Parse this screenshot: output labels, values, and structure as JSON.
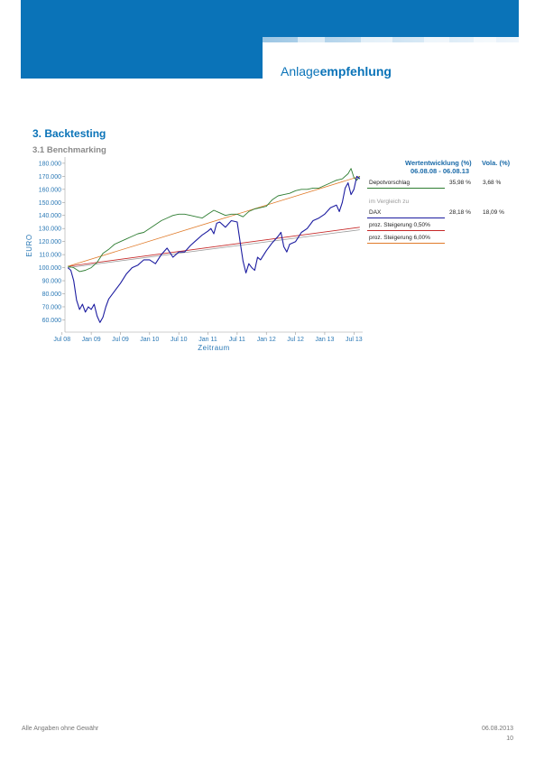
{
  "header": {
    "title_light": "Anlage",
    "title_bold": "empfehlung"
  },
  "section": {
    "title": "3. Backtesting",
    "subtitle": "3.1 Benchmarking"
  },
  "legend": {
    "col1_header": "Wertentwicklung (%)",
    "col2_header": "Vola. (%)",
    "period": "06.08.08 - 06.08.13",
    "comparison_label": "im Vergleich zu",
    "rows": [
      {
        "name": "Depotvorschlag",
        "performance": "35,98 %",
        "volatility": "3,68 %",
        "color": "#2e7d32"
      },
      {
        "name": "DAX",
        "performance": "28,18 %",
        "volatility": "18,09 %",
        "color": "#1c1ca0"
      },
      {
        "name": "proz. Steigerung 0,50%",
        "performance": "",
        "volatility": "",
        "color": "#c62828"
      },
      {
        "name": "proz. Steigerung 6,00%",
        "performance": "",
        "volatility": "",
        "color": "#e07b2a"
      }
    ]
  },
  "chart_data": {
    "type": "line",
    "ylabel": "EURO",
    "xlabel": "Zeitraum",
    "ylim": [
      52000,
      182000
    ],
    "yticks": [
      "180.000",
      "170.000",
      "160.000",
      "150.000",
      "140.000",
      "130.000",
      "120.000",
      "110.000",
      "100.000",
      "90.000",
      "80.000",
      "70.000",
      "60.000"
    ],
    "ytick_values": [
      180000,
      170000,
      160000,
      150000,
      140000,
      130000,
      120000,
      110000,
      100000,
      90000,
      80000,
      70000,
      60000
    ],
    "xticks": [
      "Jul 08",
      "Jan 09",
      "Jul 09",
      "Jan 10",
      "Jul 10",
      "Jan 11",
      "Jul 11",
      "Jan 12",
      "Jul 12",
      "Jan 13",
      "Jul 13"
    ],
    "xtick_values": [
      2008.5,
      2009.0,
      2009.5,
      2010.0,
      2010.5,
      2011.0,
      2011.5,
      2012.0,
      2012.5,
      2013.0,
      2013.5
    ],
    "xlim": [
      2008.55,
      2013.65
    ],
    "series": [
      {
        "name": "Depotvorschlag",
        "color": "#2e7d32",
        "x": [
          2008.6,
          2008.7,
          2008.8,
          2008.9,
          2009.0,
          2009.1,
          2009.2,
          2009.3,
          2009.4,
          2009.5,
          2009.6,
          2009.7,
          2009.8,
          2009.9,
          2010.0,
          2010.1,
          2010.2,
          2010.3,
          2010.4,
          2010.5,
          2010.6,
          2010.7,
          2010.8,
          2010.9,
          2011.0,
          2011.1,
          2011.2,
          2011.3,
          2011.4,
          2011.5,
          2011.6,
          2011.7,
          2011.8,
          2011.9,
          2012.0,
          2012.1,
          2012.2,
          2012.3,
          2012.4,
          2012.5,
          2012.6,
          2012.7,
          2012.8,
          2012.9,
          2013.0,
          2013.1,
          2013.2,
          2013.3,
          2013.4,
          2013.45,
          2013.5,
          2013.55,
          2013.6
        ],
        "values": [
          101000,
          100000,
          97000,
          98000,
          100000,
          104000,
          111000,
          114000,
          118000,
          120000,
          122000,
          124000,
          126000,
          127000,
          130000,
          133000,
          136000,
          138000,
          140000,
          141000,
          141000,
          140000,
          139000,
          138000,
          141000,
          144000,
          142000,
          140000,
          141000,
          141000,
          139000,
          143000,
          145000,
          146000,
          147000,
          152000,
          155000,
          156000,
          157000,
          159000,
          160000,
          160000,
          161000,
          161000,
          163000,
          165000,
          167000,
          168000,
          172000,
          176000,
          169000,
          167000,
          170000
        ]
      },
      {
        "name": "DAX",
        "color": "#1c1ca0",
        "x": [
          2008.6,
          2008.65,
          2008.7,
          2008.75,
          2008.8,
          2008.85,
          2008.9,
          2008.95,
          2009.0,
          2009.05,
          2009.1,
          2009.15,
          2009.2,
          2009.25,
          2009.3,
          2009.4,
          2009.5,
          2009.6,
          2009.7,
          2009.8,
          2009.9,
          2010.0,
          2010.1,
          2010.2,
          2010.3,
          2010.4,
          2010.5,
          2010.6,
          2010.7,
          2010.8,
          2010.9,
          2011.0,
          2011.05,
          2011.1,
          2011.15,
          2011.2,
          2011.3,
          2011.4,
          2011.5,
          2011.55,
          2011.6,
          2011.65,
          2011.7,
          2011.75,
          2011.8,
          2011.85,
          2011.9,
          2012.0,
          2012.1,
          2012.2,
          2012.25,
          2012.3,
          2012.35,
          2012.4,
          2012.5,
          2012.6,
          2012.7,
          2012.8,
          2012.9,
          2013.0,
          2013.1,
          2013.2,
          2013.25,
          2013.3,
          2013.35,
          2013.4,
          2013.45,
          2013.5,
          2013.55,
          2013.6
        ],
        "values": [
          100000,
          98000,
          90000,
          75000,
          68000,
          72000,
          66000,
          70000,
          68000,
          72000,
          63000,
          58000,
          62000,
          70000,
          76000,
          82000,
          88000,
          95000,
          100000,
          102000,
          106000,
          106000,
          103000,
          110000,
          115000,
          108000,
          112000,
          112000,
          117000,
          121000,
          125000,
          128000,
          130000,
          126000,
          134000,
          135000,
          131000,
          136000,
          135000,
          120000,
          105000,
          96000,
          103000,
          100000,
          98000,
          108000,
          106000,
          113000,
          119000,
          124000,
          127000,
          116000,
          112000,
          118000,
          120000,
          127000,
          130000,
          136000,
          138000,
          141000,
          146000,
          148000,
          143000,
          150000,
          161000,
          165000,
          156000,
          160000,
          170000,
          168000
        ]
      },
      {
        "name": "proz. Steigerung 0,50%",
        "color": "#c62828",
        "x": [
          2008.6,
          2013.6
        ],
        "values": [
          101000,
          131000
        ]
      },
      {
        "name": "proz. Steigerung 6,00%",
        "color": "#e07b2a",
        "x": [
          2008.6,
          2013.6
        ],
        "values": [
          101000,
          170000
        ]
      },
      {
        "name": "",
        "color": "#999999",
        "x": [
          2008.6,
          2013.6
        ],
        "values": [
          100000,
          129000
        ]
      }
    ]
  },
  "footer": {
    "disclaimer": "Alle Angaben ohne Gewähr",
    "date": "06.08.2013",
    "page": "10"
  }
}
